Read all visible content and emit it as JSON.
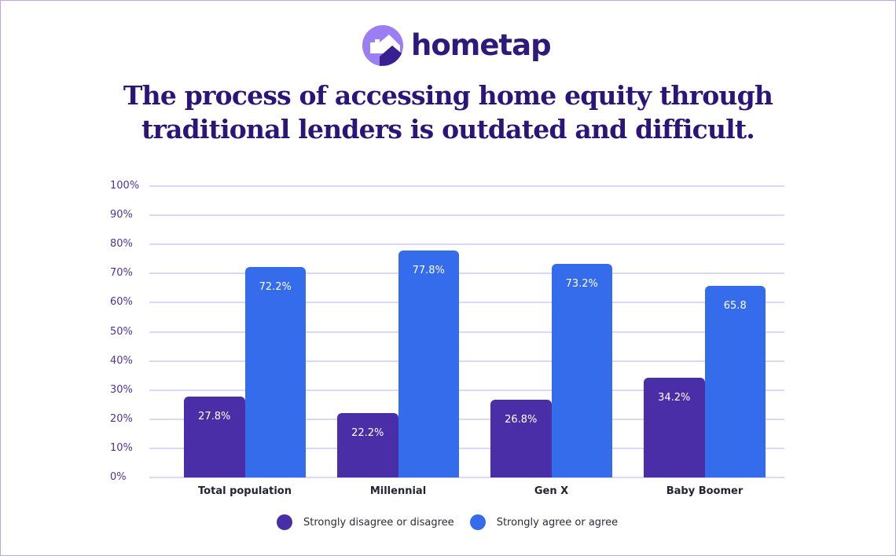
{
  "brand": {
    "name": "hometap",
    "colors": {
      "primary_dark": "#2e1a7a",
      "logo_light": "#9b7ef2",
      "logo_dark": "#3a1f92"
    }
  },
  "title": {
    "line1": "The process of accessing home equity through",
    "line2": "traditional lenders is outdated and difficult."
  },
  "legend": [
    {
      "label": "Strongly disagree or disagree",
      "color": "#4a2ea8"
    },
    {
      "label": "Strongly agree or agree",
      "color": "#356cec"
    }
  ],
  "y_ticks": [
    "100%",
    "90%",
    "80%",
    "70%",
    "60%",
    "50%",
    "40%",
    "30%",
    "20%",
    "10%",
    "0%"
  ],
  "groups": [
    {
      "name": "Total population",
      "disagree": 27.8,
      "disagree_label": "27.8%",
      "agree": 72.2,
      "agree_label": "72.2%"
    },
    {
      "name": "Millennial",
      "disagree": 22.2,
      "disagree_label": "22.2%",
      "agree": 77.8,
      "agree_label": "77.8%"
    },
    {
      "name": "Gen X",
      "disagree": 26.8,
      "disagree_label": "26.8%",
      "agree": 73.2,
      "agree_label": "73.2%"
    },
    {
      "name": "Baby Boomer",
      "disagree": 34.2,
      "disagree_label": "34.2%",
      "agree": 65.8,
      "agree_label": "65.8"
    }
  ],
  "chart_data": {
    "type": "bar",
    "title": "The process of accessing home equity through traditional lenders is outdated and difficult.",
    "categories": [
      "Total population",
      "Millennial",
      "Gen X",
      "Baby Boomer"
    ],
    "series": [
      {
        "name": "Strongly disagree or disagree",
        "values": [
          27.8,
          22.2,
          26.8,
          34.2
        ],
        "color": "#4a2ea8"
      },
      {
        "name": "Strongly agree or agree",
        "values": [
          72.2,
          77.8,
          73.2,
          65.8
        ],
        "color": "#356cec"
      }
    ],
    "data_labels": [
      [
        "27.8%",
        "22.2%",
        "26.8%",
        "34.2%"
      ],
      [
        "72.2%",
        "77.8%",
        "73.2%",
        "65.8"
      ]
    ],
    "xlabel": "",
    "ylabel": "",
    "ylim": [
      0,
      100
    ],
    "y_tick_format": "percent",
    "y_ticks": [
      0,
      10,
      20,
      30,
      40,
      50,
      60,
      70,
      80,
      90,
      100
    ],
    "grid": true,
    "legend_position": "bottom"
  }
}
